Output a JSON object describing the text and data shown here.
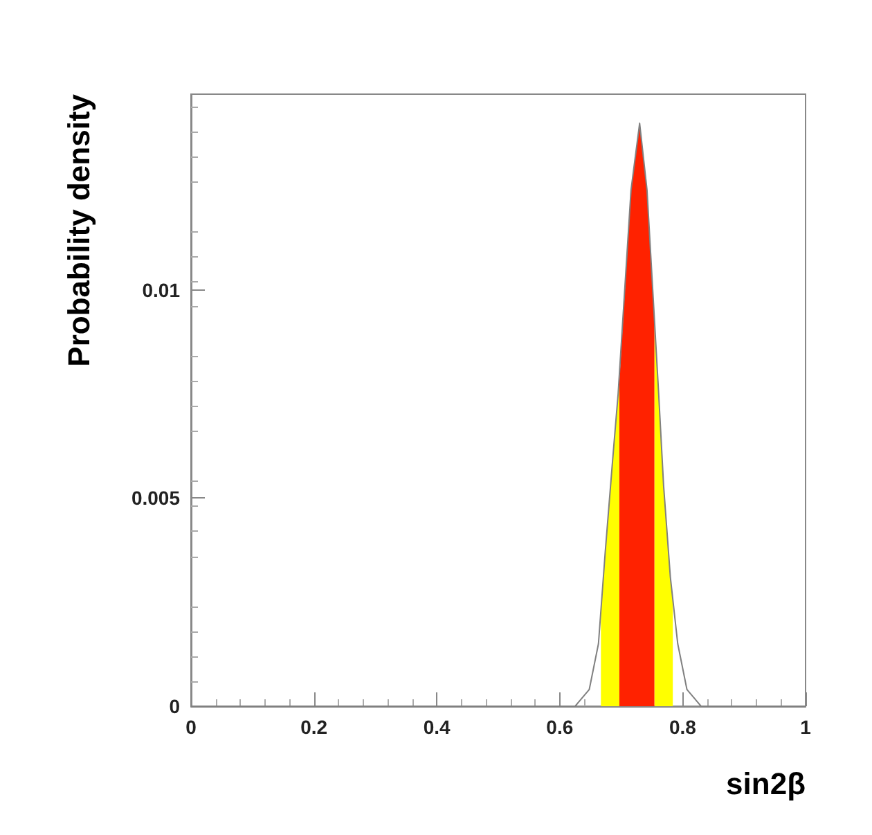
{
  "chart_data": {
    "type": "line",
    "xlabel": "sin2β",
    "ylabel": "Probability density",
    "xlim": [
      0,
      1
    ],
    "xticks": [
      0,
      0.2,
      0.4,
      0.6,
      0.8,
      1
    ],
    "ylim": [
      0,
      0.0147
    ],
    "yticks": [
      0,
      0.005,
      0.01
    ],
    "grid": false,
    "marker": "none",
    "series": [
      {
        "type": "area",
        "color": "#ffff00",
        "x": [
          0.667,
          0.674,
          0.686,
          0.695,
          0.697
        ],
        "values": [
          0.0022,
          0.0037,
          0.0059,
          0.0075,
          0.0078
        ]
      },
      {
        "type": "area",
        "color": "#ffff00",
        "x": [
          0.754,
          0.761,
          0.769,
          0.78,
          0.784
        ],
        "values": [
          0.0093,
          0.0075,
          0.0053,
          0.0031,
          0.0025
        ]
      },
      {
        "type": "area",
        "color": "#ff2200",
        "x": [
          0.697,
          0.716,
          0.73,
          0.742,
          0.754
        ],
        "values": [
          0.0078,
          0.0124,
          0.014,
          0.0124,
          0.0093
        ]
      },
      {
        "type": "line",
        "color": "#808080",
        "x": [
          0,
          0.572,
          0.625,
          0.648,
          0.663,
          0.674,
          0.686,
          0.695,
          0.716,
          0.73,
          0.742,
          0.761,
          0.769,
          0.78,
          0.792,
          0.807,
          0.83,
          1
        ],
        "values": [
          0,
          0,
          0,
          0.0004,
          0.0015,
          0.0037,
          0.0059,
          0.0075,
          0.0124,
          0.014,
          0.0124,
          0.0075,
          0.0053,
          0.0031,
          0.0015,
          0.0004,
          0,
          0
        ]
      }
    ]
  }
}
